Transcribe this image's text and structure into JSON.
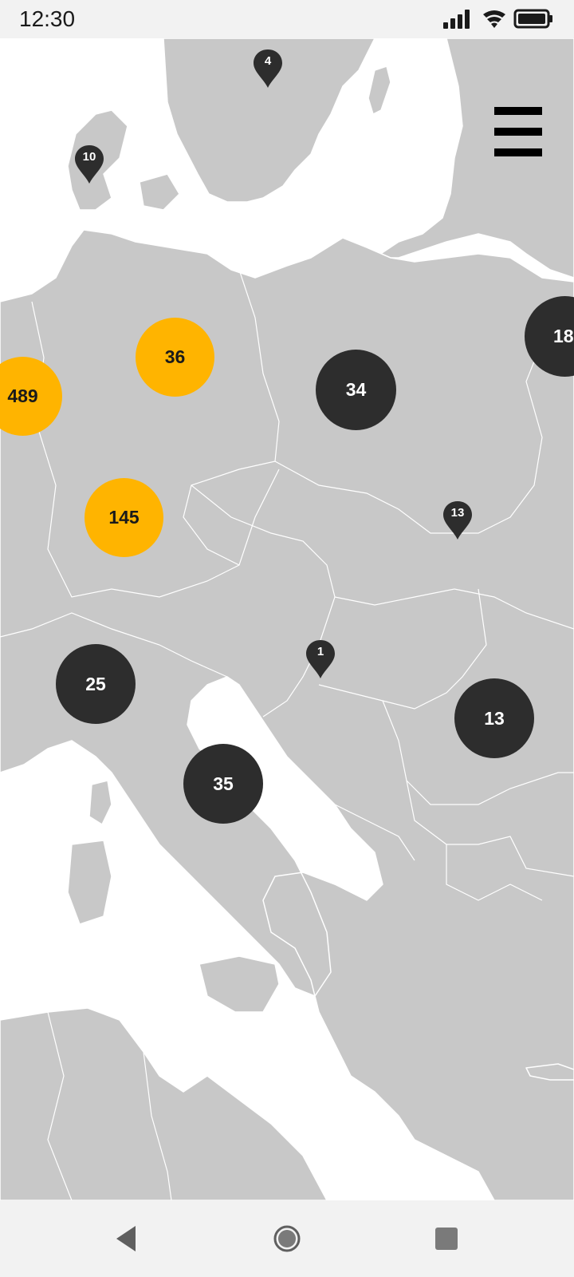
{
  "status_bar": {
    "time": "12:30",
    "icons": [
      "signal-icon",
      "wifi-icon",
      "battery-icon"
    ]
  },
  "map": {
    "clusters": [
      {
        "id": "c489",
        "label": "489",
        "style": "yellow"
      },
      {
        "id": "c36",
        "label": "36",
        "style": "yellow"
      },
      {
        "id": "c145",
        "label": "145",
        "style": "yellow"
      },
      {
        "id": "c34",
        "label": "34",
        "style": "dark"
      },
      {
        "id": "c18",
        "label": "18",
        "style": "dark"
      },
      {
        "id": "c25",
        "label": "25",
        "style": "dark"
      },
      {
        "id": "c35",
        "label": "35",
        "style": "dark"
      },
      {
        "id": "c13",
        "label": "13",
        "style": "dark"
      }
    ],
    "pins": [
      {
        "id": "p4",
        "label": "4"
      },
      {
        "id": "p10",
        "label": "10"
      },
      {
        "id": "p13",
        "label": "13"
      },
      {
        "id": "p1",
        "label": "1"
      }
    ]
  },
  "colors": {
    "land": "#c8c8c8",
    "water": "#ffffff",
    "cluster_dark": "#2d2d2d",
    "cluster_highlight": "#ffb400"
  },
  "toolbar": {
    "menu_icon": "hamburger-menu-icon"
  },
  "nav_bar": {
    "buttons": [
      "back-icon",
      "home-icon",
      "recents-icon"
    ]
  }
}
